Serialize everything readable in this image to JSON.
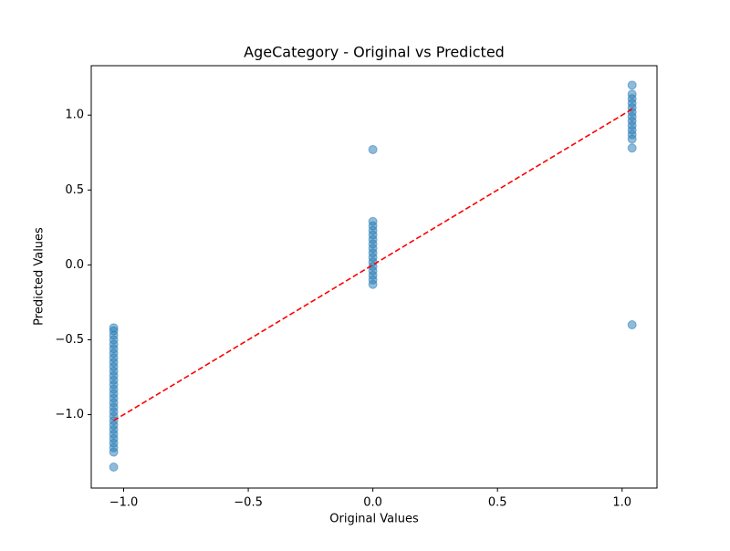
{
  "chart_data": {
    "type": "scatter",
    "title": "AgeCategory - Original vs Predicted",
    "x_label": "Original Values",
    "y_label": "Predicted Values",
    "xlim": [
      -1.13,
      1.14
    ],
    "ylim": [
      -1.49,
      1.33
    ],
    "xticks": [
      {
        "value": -1.0,
        "label": "−1.0"
      },
      {
        "value": -0.5,
        "label": "−0.5"
      },
      {
        "value": 0.0,
        "label": "0.0"
      },
      {
        "value": 0.5,
        "label": "0.5"
      },
      {
        "value": 1.0,
        "label": "1.0"
      }
    ],
    "yticks": [
      {
        "value": -1.0,
        "label": "−1.0"
      },
      {
        "value": -0.5,
        "label": "−0.5"
      },
      {
        "value": 0.0,
        "label": "0.0"
      },
      {
        "value": 0.5,
        "label": "0.5"
      },
      {
        "value": 1.0,
        "label": "1.0"
      }
    ],
    "series": [
      {
        "type": "scatter",
        "color": "#1f77b4",
        "x": [
          -1.04,
          -1.04,
          -1.04,
          -1.04,
          -1.04,
          -1.04,
          -1.04,
          -1.04,
          -1.04,
          -1.04,
          -1.04,
          -1.04,
          -1.04,
          -1.04,
          -1.04,
          -1.04,
          -1.04,
          -1.04,
          -1.04,
          -1.04,
          -1.04,
          -1.04,
          -1.04,
          -1.04,
          -1.04,
          -1.04,
          -1.04,
          -1.04,
          -1.04,
          -1.04,
          0,
          0,
          0,
          0,
          0,
          0,
          0,
          0,
          0,
          0,
          0,
          0,
          0,
          0,
          0,
          0,
          1.04,
          1.04,
          1.04,
          1.04,
          1.04,
          1.04,
          1.04,
          1.04,
          1.04,
          1.04,
          1.04,
          1.04,
          1.04,
          1.04
        ],
        "values": [
          -1.35,
          -1.25,
          -1.22,
          -1.19,
          -1.16,
          -1.13,
          -1.1,
          -1.07,
          -1.04,
          -1.01,
          -0.98,
          -0.95,
          -0.92,
          -0.89,
          -0.86,
          -0.83,
          -0.8,
          -0.77,
          -0.74,
          -0.71,
          -0.68,
          -0.65,
          -0.62,
          -0.59,
          -0.56,
          -0.53,
          -0.5,
          -0.47,
          -0.44,
          -0.42,
          -0.13,
          -0.1,
          -0.07,
          -0.04,
          -0.01,
          0.02,
          0.05,
          0.08,
          0.11,
          0.14,
          0.17,
          0.2,
          0.23,
          0.26,
          0.29,
          0.77,
          -0.4,
          0.78,
          0.84,
          0.87,
          0.9,
          0.93,
          0.96,
          0.99,
          1.02,
          1.05,
          1.08,
          1.11,
          1.14,
          1.2
        ]
      },
      {
        "type": "line",
        "color": "#ff0000",
        "x": [
          -1.04,
          1.04
        ],
        "values": [
          -1.04,
          1.04
        ]
      }
    ]
  }
}
